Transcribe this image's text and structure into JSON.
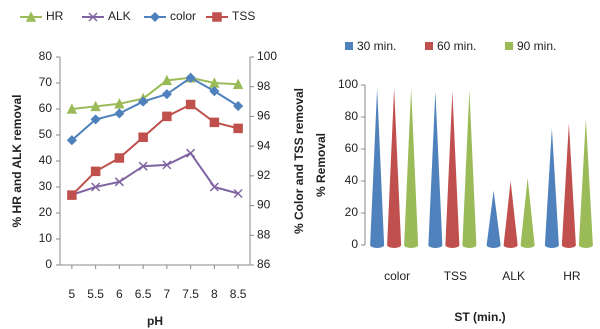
{
  "chart_data": [
    {
      "type": "line",
      "x": [
        5,
        5.5,
        6,
        6.5,
        7,
        7.5,
        8,
        8.5
      ],
      "xticks": [
        5,
        5.5,
        6,
        6.5,
        7,
        7.5,
        8,
        8.5
      ],
      "xlim": [
        4.75,
        8.75
      ],
      "ylim": [
        0,
        80
      ],
      "yticks": [
        0,
        10,
        20,
        30,
        40,
        50,
        60,
        70,
        80
      ],
      "y2lim": [
        86,
        100
      ],
      "y2ticks": [
        86,
        88,
        90,
        92,
        94,
        96,
        98,
        100
      ],
      "xlabel": "pH",
      "ylabel": "% HR and ALK removal",
      "y2label": "% Color and TSS removal",
      "series": [
        {
          "name": "HR",
          "color": "#9bbb59",
          "marker": "triangle",
          "values": [
            60,
            61,
            62,
            64,
            71,
            72,
            70,
            69.5
          ]
        },
        {
          "name": "ALK",
          "color": "#8064a2",
          "marker": "cross",
          "values": [
            27,
            30,
            32,
            38,
            38.5,
            43,
            30,
            27.5
          ]
        },
        {
          "name": "color",
          "color": "#4f81bd",
          "marker": "diamond",
          "axis": "y2",
          "values": [
            94.4,
            95.8,
            96.2,
            97,
            97.5,
            98.6,
            97.7,
            96.7
          ]
        },
        {
          "name": "TSS",
          "color": "#c0504d",
          "marker": "square",
          "axis": "y2",
          "values": [
            90.7,
            92.3,
            93.2,
            94.6,
            96,
            96.8,
            95.6,
            95.2
          ]
        }
      ]
    },
    {
      "type": "cone",
      "categories": [
        "color",
        "TSS",
        "ALK",
        "HR"
      ],
      "ylim": [
        0,
        100
      ],
      "yticks": [
        0,
        20,
        40,
        60,
        80,
        100
      ],
      "xlabel": "ST (min.)",
      "ylabel": "% Removal",
      "series": [
        {
          "name": "30 min.",
          "color": "#4f81bd",
          "values": [
            98,
            96,
            34,
            73
          ]
        },
        {
          "name": "60 min.",
          "color": "#c0504d",
          "values": [
            98,
            96,
            40,
            76
          ]
        },
        {
          "name": "90 min.",
          "color": "#9bbb59",
          "values": [
            98,
            97,
            42,
            79
          ]
        }
      ]
    }
  ]
}
